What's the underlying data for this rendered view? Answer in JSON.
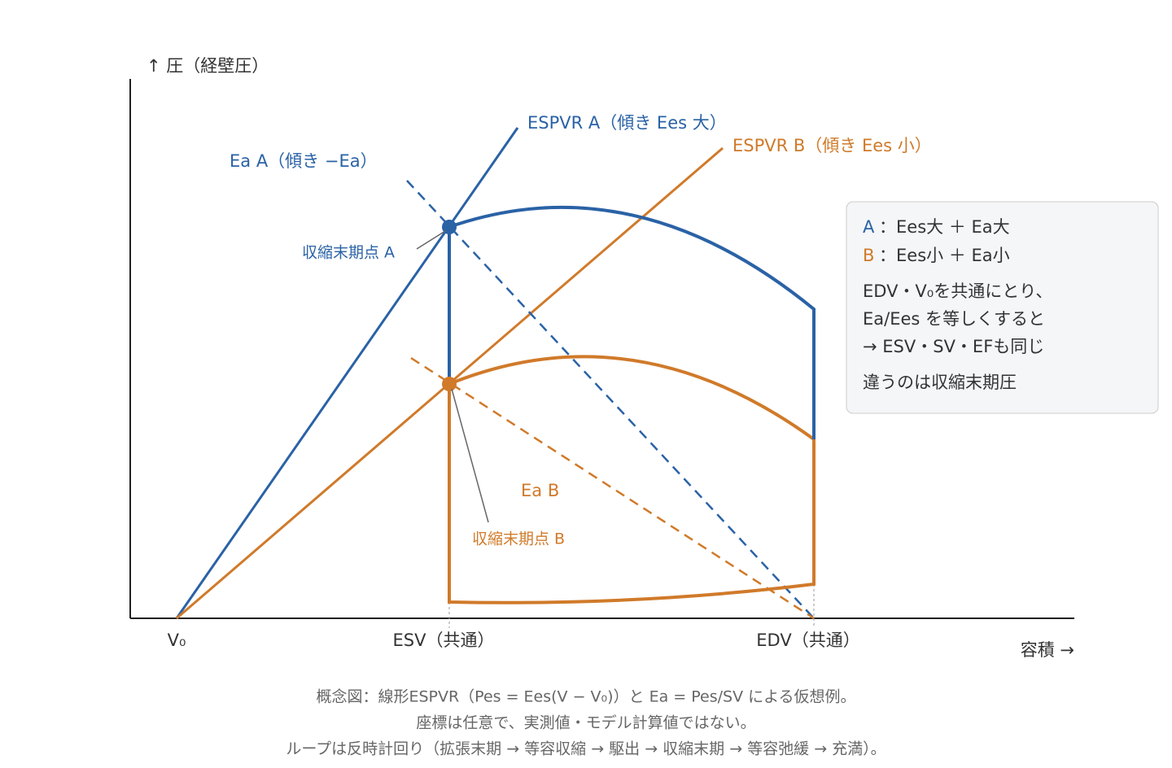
{
  "axes": {
    "y_label": "↑ 圧（経壁圧）",
    "x_label": "容積 →",
    "v0": "V₀",
    "esv": "ESV（共通）",
    "edv": "EDV（共通）"
  },
  "labels": {
    "espvr_a": "ESPVR A（傾き Ees 大）",
    "espvr_b": "ESPVR B（傾き Ees 小）",
    "ea_a": "Ea A（傾き −Ea）",
    "ea_b": "Ea B",
    "point_a": "収縮末期点 A",
    "point_b": "収縮末期点 B"
  },
  "legend": {
    "a_key": "A",
    "a_text": "：Ees大 ＋ Ea大",
    "b_key": "B",
    "b_text": "：Ees小 ＋ Ea小",
    "notes": [
      "EDV・V₀を共通にとり、",
      "Ea/Ees を等しくすると",
      "→ ESV・SV・EFも同じ",
      "違うのは収縮末期圧"
    ]
  },
  "caption": [
    "概念図：線形ESPVR（Pes = Ees(V − V₀)）と Ea = Pes/SV による仮想例。",
    "座標は任意で、実測値・モデル計算値ではない。",
    "ループは反時計回り（拡張末期 → 等容収縮 → 駆出 → 収縮末期 → 等容弛緩 → 充満）。"
  ]
}
